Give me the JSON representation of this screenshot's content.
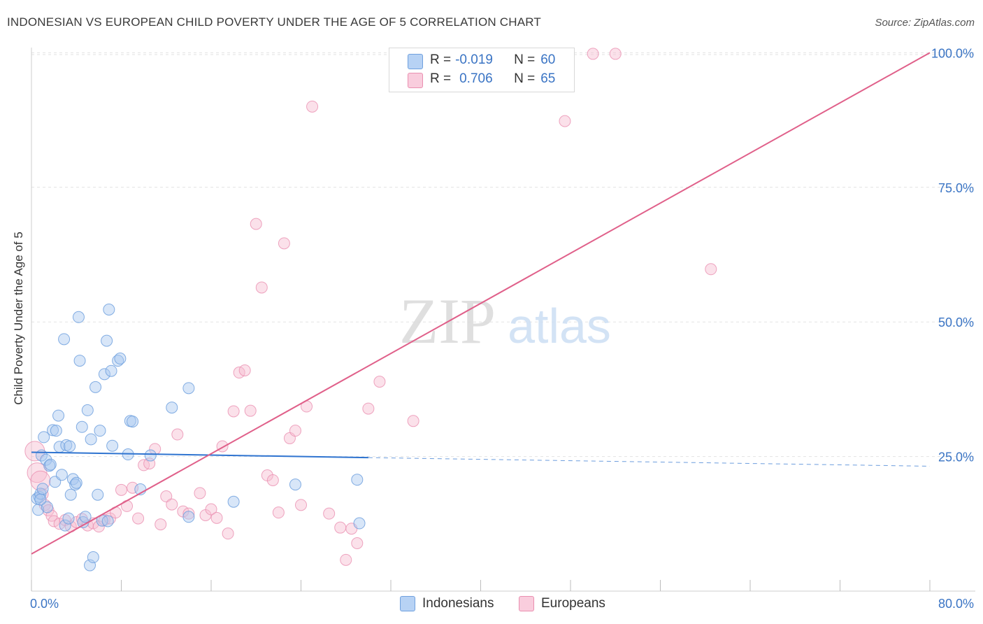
{
  "title": "INDONESIAN VS EUROPEAN CHILD POVERTY UNDER THE AGE OF 5 CORRELATION CHART",
  "source": "Source: ZipAtlas.com",
  "watermark": {
    "zip": "ZIP",
    "atlas": "atlas"
  },
  "legend": {
    "r_label": "R =",
    "n_label": "N =",
    "rows": [
      {
        "r": "-0.019",
        "n": "60"
      },
      {
        "r": "0.706",
        "n": "65"
      }
    ]
  },
  "bottom_legend": [
    "Indonesians",
    "Europeans"
  ],
  "colors": {
    "indonesians_fill": "#a8c8f0",
    "indonesians_stroke": "#6fa0de",
    "indonesians_line": "#2f74d0",
    "europeans_fill": "#f6bcd0",
    "europeans_stroke": "#ea8fb0",
    "europeans_line": "#e0608a",
    "tick_label": "#3a74c4"
  },
  "chart_data": {
    "type": "scatter",
    "title": "INDONESIAN VS EUROPEAN CHILD POVERTY UNDER THE AGE OF 5 CORRELATION CHART",
    "xlabel": "",
    "ylabel": "Child Poverty Under the Age of 5",
    "xlim": [
      0,
      80
    ],
    "ylim": [
      0,
      102
    ],
    "x_tick_labels": [
      "0.0%",
      "80.0%"
    ],
    "y_ticks": [
      25,
      50,
      75,
      100
    ],
    "y_tick_labels": [
      "25.0%",
      "50.0%",
      "75.0%",
      "100.0%"
    ],
    "grid": true,
    "series": [
      {
        "name": "Indonesians",
        "points": [
          [
            0.5,
            17.2
          ],
          [
            0.6,
            15.1
          ],
          [
            0.7,
            17.5
          ],
          [
            0.8,
            18.1
          ],
          [
            0.9,
            25.2
          ],
          [
            1.0,
            19.0
          ],
          [
            1.1,
            28.6
          ],
          [
            1.3,
            24.4
          ],
          [
            1.4,
            15.6
          ],
          [
            1.6,
            23.3
          ],
          [
            1.7,
            23.5
          ],
          [
            1.9,
            29.9
          ],
          [
            2.1,
            20.3
          ],
          [
            2.2,
            29.8
          ],
          [
            2.4,
            32.6
          ],
          [
            2.5,
            26.8
          ],
          [
            2.7,
            21.6
          ],
          [
            2.9,
            46.8
          ],
          [
            3.0,
            12.2
          ],
          [
            3.1,
            27.1
          ],
          [
            3.3,
            13.5
          ],
          [
            3.4,
            26.9
          ],
          [
            3.5,
            17.9
          ],
          [
            3.7,
            20.8
          ],
          [
            3.9,
            19.8
          ],
          [
            4.0,
            20.1
          ],
          [
            4.2,
            50.9
          ],
          [
            4.3,
            42.8
          ],
          [
            4.5,
            30.5
          ],
          [
            4.6,
            12.8
          ],
          [
            4.8,
            13.8
          ],
          [
            5.0,
            33.6
          ],
          [
            5.2,
            4.8
          ],
          [
            5.3,
            28.2
          ],
          [
            5.5,
            6.3
          ],
          [
            5.7,
            37.9
          ],
          [
            5.9,
            17.9
          ],
          [
            6.1,
            29.8
          ],
          [
            6.3,
            13.1
          ],
          [
            6.5,
            40.3
          ],
          [
            6.7,
            46.5
          ],
          [
            6.8,
            13.0
          ],
          [
            6.9,
            52.3
          ],
          [
            7.1,
            40.9
          ],
          [
            7.2,
            27.0
          ],
          [
            7.7,
            42.8
          ],
          [
            7.9,
            43.2
          ],
          [
            8.6,
            25.4
          ],
          [
            8.8,
            31.6
          ],
          [
            9.0,
            31.5
          ],
          [
            9.7,
            18.9
          ],
          [
            10.6,
            25.2
          ],
          [
            12.5,
            34.1
          ],
          [
            14.0,
            13.8
          ],
          [
            14.0,
            37.7
          ],
          [
            18.0,
            16.6
          ],
          [
            23.5,
            19.8
          ],
          [
            29.0,
            20.7
          ],
          [
            29.2,
            12.6
          ],
          [
            0.8,
            17.0
          ]
        ]
      },
      {
        "name": "Europeans",
        "points": [
          [
            0.3,
            26.0
          ],
          [
            0.5,
            22.0
          ],
          [
            0.8,
            20.5
          ],
          [
            1.0,
            18.0
          ],
          [
            1.2,
            16.0
          ],
          [
            1.5,
            15.0
          ],
          [
            1.8,
            14.0
          ],
          [
            2.0,
            13.0
          ],
          [
            2.5,
            12.5
          ],
          [
            3.0,
            13.2
          ],
          [
            3.5,
            12.0
          ],
          [
            4.0,
            12.8
          ],
          [
            4.5,
            13.4
          ],
          [
            5.0,
            12.2
          ],
          [
            5.5,
            12.6
          ],
          [
            6.0,
            12.0
          ],
          [
            6.5,
            13.2
          ],
          [
            7.0,
            13.5
          ],
          [
            7.5,
            14.6
          ],
          [
            8.0,
            18.8
          ],
          [
            8.5,
            15.8
          ],
          [
            9.0,
            19.2
          ],
          [
            9.5,
            13.5
          ],
          [
            10.0,
            23.4
          ],
          [
            10.5,
            23.7
          ],
          [
            11.0,
            26.4
          ],
          [
            11.5,
            12.4
          ],
          [
            12.0,
            17.6
          ],
          [
            12.5,
            16.1
          ],
          [
            13.0,
            29.1
          ],
          [
            13.5,
            14.8
          ],
          [
            14.0,
            14.4
          ],
          [
            15.0,
            18.2
          ],
          [
            15.5,
            14.1
          ],
          [
            16.0,
            15.2
          ],
          [
            16.5,
            13.6
          ],
          [
            17.0,
            26.9
          ],
          [
            17.5,
            10.7
          ],
          [
            18.0,
            33.4
          ],
          [
            18.5,
            40.6
          ],
          [
            19.0,
            41.0
          ],
          [
            19.5,
            33.5
          ],
          [
            20.0,
            68.2
          ],
          [
            20.5,
            56.4
          ],
          [
            21.0,
            21.5
          ],
          [
            21.5,
            20.6
          ],
          [
            22.0,
            14.6
          ],
          [
            22.5,
            64.6
          ],
          [
            23.0,
            28.4
          ],
          [
            23.5,
            29.8
          ],
          [
            24.0,
            16.0
          ],
          [
            24.5,
            34.3
          ],
          [
            25.0,
            90.0
          ],
          [
            26.5,
            14.4
          ],
          [
            27.5,
            11.8
          ],
          [
            28.0,
            5.8
          ],
          [
            28.5,
            11.6
          ],
          [
            29.0,
            8.9
          ],
          [
            30.0,
            33.9
          ],
          [
            31.0,
            38.9
          ],
          [
            34.0,
            31.6
          ],
          [
            47.5,
            87.3
          ],
          [
            50.0,
            99.8
          ],
          [
            52.0,
            99.8
          ],
          [
            60.5,
            59.8
          ]
        ]
      }
    ],
    "trend_lines": [
      {
        "name": "Indonesians",
        "x": [
          0,
          30
        ],
        "y": [
          25.8,
          24.8
        ],
        "dashed_extension_to_x": 80,
        "dashed_end_y": 23.2
      },
      {
        "name": "Europeans",
        "x": [
          0,
          80
        ],
        "y": [
          6.9,
          100.0
        ]
      }
    ]
  }
}
